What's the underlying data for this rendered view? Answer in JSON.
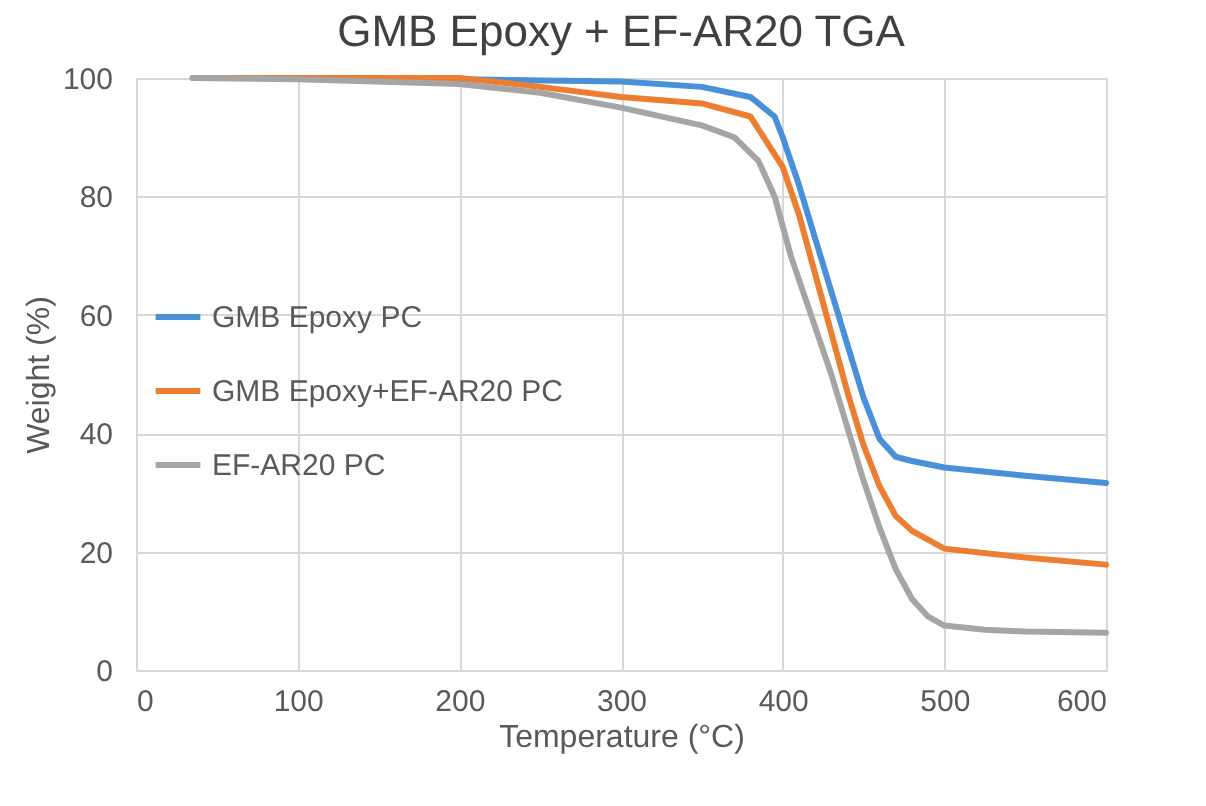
{
  "chart_data": {
    "type": "line",
    "title": "GMB Epoxy + EF-AR20 TGA",
    "xlabel": "Temperature (°C)",
    "ylabel": "Weight (%)",
    "xlim": [
      0,
      600
    ],
    "xticks": [
      0,
      100,
      200,
      300,
      400,
      500,
      600
    ],
    "ylim": [
      0,
      100
    ],
    "yticks": [
      0,
      20,
      40,
      60,
      80,
      100
    ],
    "grid": true,
    "legend": "left",
    "marker": "none",
    "line_style": "solid",
    "series": [
      {
        "name": "GMB Epoxy PC",
        "color": "#4a90d9",
        "x": [
          200,
          300,
          350,
          380,
          395,
          400,
          410,
          420,
          430,
          440,
          450,
          460,
          470,
          480,
          500,
          550,
          600
        ],
        "values": [
          99.8,
          99.4,
          98.5,
          96.8,
          93.5,
          90,
          82,
          73,
          64,
          55,
          46,
          39,
          36,
          35.3,
          34.2,
          32.8,
          31.6
        ]
      },
      {
        "name": "GMB Epoxy+EF-AR20 PC",
        "color": "#ed7d31",
        "x": [
          35,
          100,
          200,
          250,
          300,
          350,
          380,
          400,
          410,
          420,
          430,
          440,
          450,
          460,
          470,
          480,
          500,
          550,
          600
        ],
        "values": [
          100,
          100,
          100,
          98.5,
          96.8,
          95.7,
          93.5,
          85,
          77,
          67,
          57,
          47,
          38,
          31,
          26,
          23.5,
          20.5,
          19,
          17.8
        ]
      },
      {
        "name": "EF-AR20 PC",
        "color": "#a5a5a5",
        "x": [
          35,
          100,
          200,
          250,
          300,
          350,
          370,
          385,
          395,
          405,
          420,
          430,
          440,
          450,
          460,
          470,
          480,
          490,
          500,
          525,
          550,
          600
        ],
        "values": [
          100,
          99.8,
          99,
          97.5,
          95,
          92,
          90,
          86,
          80,
          70,
          58,
          50,
          41,
          32,
          24,
          17,
          12,
          9,
          7.5,
          6.8,
          6.5,
          6.3
        ]
      }
    ]
  }
}
